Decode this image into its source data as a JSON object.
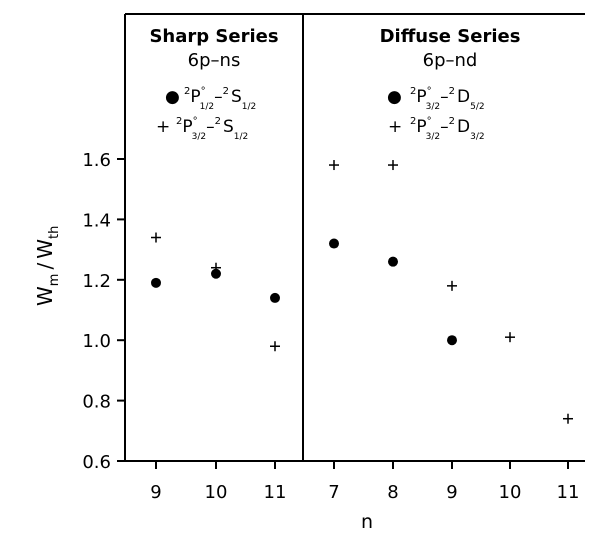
{
  "chart_data": {
    "type": "scatter",
    "xlabel": "n",
    "ylabel": {
      "main": "W",
      "sub_m": "m",
      "slash": "/",
      "main2": "W",
      "sub_th": "th"
    },
    "ylim": [
      0.6,
      1.85
    ],
    "yticks": [
      "0.6",
      "0.8",
      "1.0",
      "1.2",
      "1.4",
      "1.6"
    ],
    "grid": false,
    "panels": [
      {
        "title": "Sharp Series",
        "subtitle": "6p–ns",
        "categories": [
          "9",
          "10",
          "11"
        ],
        "legend": [
          {
            "marker": "●",
            "lower": "P",
            "lower_sup": "2",
            "lower_o": "°",
            "lower_sub": "1/2",
            "dash": "–",
            "upper": "S",
            "upper_sup": "2",
            "upper_sub": "1/2"
          },
          {
            "marker": "+",
            "lower": "P",
            "lower_sup": "2",
            "lower_o": "°",
            "lower_sub": "3/2",
            "dash": "–",
            "upper": "S",
            "upper_sup": "2",
            "upper_sub": "1/2"
          }
        ],
        "series": [
          {
            "marker": "circle",
            "values": [
              1.19,
              1.22,
              1.14
            ]
          },
          {
            "marker": "plus",
            "values": [
              1.34,
              1.24,
              0.98
            ]
          }
        ]
      },
      {
        "title": "Diffuse Series",
        "subtitle": "6p–nd",
        "categories": [
          "7",
          "8",
          "9",
          "10",
          "11"
        ],
        "legend": [
          {
            "marker": "●",
            "lower": "P",
            "lower_sup": "2",
            "lower_o": "°",
            "lower_sub": "3/2",
            "dash": "–",
            "upper": "D",
            "upper_sup": "2",
            "upper_sub": "5/2"
          },
          {
            "marker": "+",
            "lower": "P",
            "lower_sup": "2",
            "lower_o": "°",
            "lower_sub": "3/2",
            "dash": "–",
            "upper": "D",
            "upper_sup": "2",
            "upper_sub": "3/2"
          }
        ],
        "series": [
          {
            "marker": "circle",
            "values": [
              1.32,
              1.26,
              1.0,
              null,
              null
            ]
          },
          {
            "marker": "plus",
            "values": [
              1.58,
              1.58,
              1.18,
              1.01,
              0.74
            ]
          }
        ]
      }
    ]
  }
}
